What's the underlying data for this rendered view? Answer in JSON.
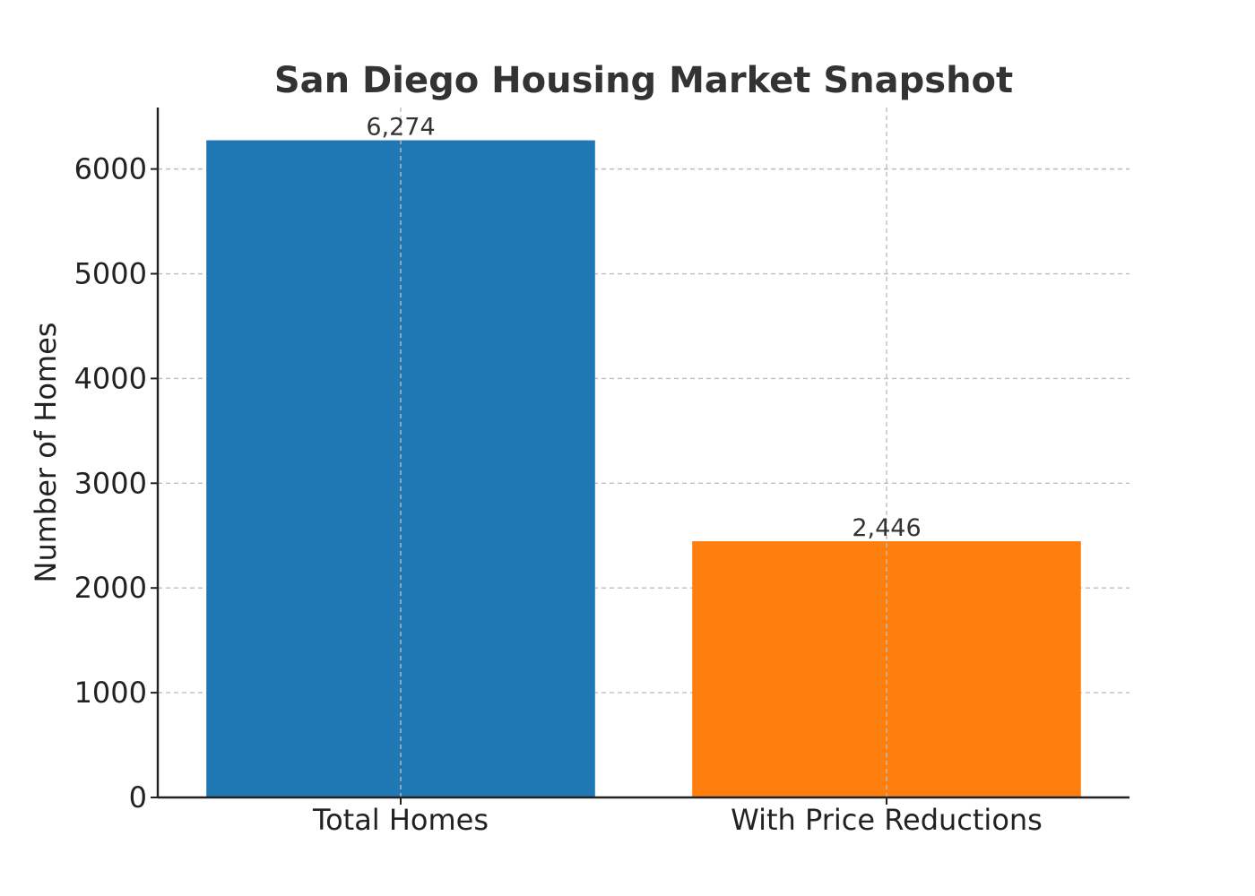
{
  "chart_data": {
    "type": "bar",
    "title": "San Diego Housing Market Snapshot",
    "xlabel": "",
    "ylabel": "Number of Homes",
    "categories": [
      "Total Homes",
      "With Price Reductions"
    ],
    "values": [
      6274,
      2446
    ],
    "value_labels": [
      "6,274",
      "2,446"
    ],
    "colors": [
      "#1f77b4",
      "#ff7f0e"
    ],
    "ylim": [
      0,
      6587
    ],
    "yticks": [
      0,
      1000,
      2000,
      3000,
      4000,
      5000,
      6000
    ],
    "ytick_labels": [
      "0",
      "1000",
      "2000",
      "3000",
      "4000",
      "5000",
      "6000"
    ],
    "grid": true,
    "legend": "none"
  }
}
